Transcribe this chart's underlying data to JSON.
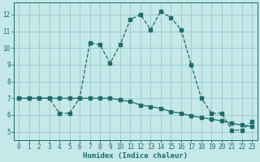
{
  "xlabel": "Humidex (Indice chaleur)",
  "background_color": "#c5e8e8",
  "grid_color": "#9ecece",
  "line_color": "#1e6b6b",
  "xlim": [
    -0.5,
    23.5
  ],
  "ylim": [
    4.5,
    12.7
  ],
  "xticks": [
    0,
    1,
    2,
    3,
    4,
    5,
    6,
    7,
    8,
    9,
    10,
    11,
    12,
    13,
    14,
    15,
    16,
    17,
    18,
    19,
    20,
    21,
    22,
    23
  ],
  "yticks": [
    5,
    6,
    7,
    8,
    9,
    10,
    11,
    12
  ],
  "series1_x": [
    0,
    1,
    2,
    3,
    4,
    5,
    6,
    7,
    8,
    9,
    10,
    11,
    12,
    13,
    14,
    15,
    16,
    17,
    18,
    19,
    20,
    21,
    22,
    23
  ],
  "series1_y": [
    7.0,
    7.0,
    7.0,
    7.0,
    6.1,
    6.1,
    7.0,
    10.3,
    10.2,
    9.1,
    10.2,
    11.7,
    12.0,
    11.1,
    12.2,
    11.8,
    11.1,
    9.0,
    7.0,
    6.1,
    6.1,
    5.1,
    5.1,
    5.6
  ],
  "series2_x": [
    0,
    1,
    2,
    3,
    4,
    5,
    6,
    7,
    8,
    9,
    10,
    11,
    12,
    13,
    14,
    15,
    16,
    17,
    18,
    19,
    20,
    21,
    22,
    23
  ],
  "series2_y": [
    7.0,
    7.0,
    7.0,
    7.0,
    7.0,
    7.0,
    7.0,
    7.0,
    7.0,
    7.0,
    6.9,
    6.8,
    6.6,
    6.5,
    6.4,
    6.2,
    6.1,
    5.95,
    5.85,
    5.75,
    5.65,
    5.5,
    5.4,
    5.3
  ]
}
